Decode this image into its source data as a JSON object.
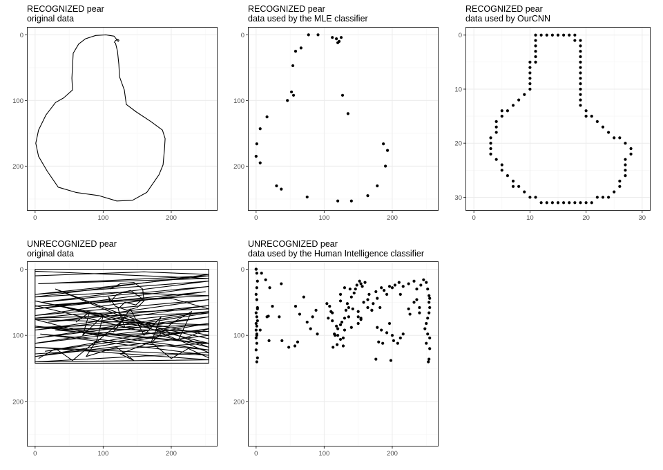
{
  "colors": {
    "panel_border": "#333333",
    "grid_major": "#ebebeb",
    "grid_minor": "#f5f5f5",
    "ink": "#000000",
    "tick_text": "#4d4d4d"
  },
  "chart_data": [
    {
      "id": "p1",
      "type": "line",
      "title": "RECOGNIZED pear",
      "subtitle": "original data",
      "xlim": [
        -12,
        268
      ],
      "ylim": [
        -12,
        268
      ],
      "y_reversed": true,
      "xticks": [
        0,
        100,
        200
      ],
      "yticks": [
        0,
        100,
        200
      ],
      "grid": true,
      "strokes": [
        {
          "x": [
            116,
            118,
            121,
            123,
            123,
            122,
            116,
            104,
            89,
            74,
            64,
            56,
            55,
            54,
            55,
            42,
            30,
            16,
            5,
            1,
            5,
            18,
            34,
            60,
            94,
            120,
            143,
            164,
            182,
            188,
            190,
            191,
            187,
            170,
            148,
            134,
            131,
            124,
            123,
            121,
            118
          ],
          "y": [
            12,
            9,
            7,
            8,
            9,
            10,
            2,
            0,
            1,
            6,
            14,
            28,
            48,
            66,
            84,
            96,
            103,
            122,
            145,
            165,
            185,
            208,
            232,
            240,
            245,
            253,
            252,
            240,
            213,
            198,
            175,
            158,
            145,
            132,
            117,
            106,
            84,
            64,
            45,
            25,
            12
          ]
        }
      ]
    },
    {
      "id": "p2",
      "type": "scatter",
      "title": "RECOGNIZED pear",
      "subtitle": "data used by the MLE classifier",
      "xlim": [
        -12,
        268
      ],
      "ylim": [
        -12,
        268
      ],
      "y_reversed": true,
      "xticks": [
        0,
        100,
        200
      ],
      "yticks": [
        0,
        100,
        200
      ],
      "grid": true,
      "x": [
        77,
        91,
        112,
        118,
        122,
        125,
        120,
        66,
        58,
        54,
        52,
        55,
        46,
        16,
        6,
        1,
        0,
        6,
        30,
        37,
        75,
        120,
        127,
        135,
        140,
        164,
        178,
        187,
        193,
        190
      ],
      "y": [
        0,
        0,
        4,
        6,
        10,
        4,
        12,
        20,
        25,
        47,
        87,
        92,
        100,
        125,
        143,
        166,
        185,
        195,
        230,
        235,
        247,
        253,
        92,
        120,
        253,
        245,
        230,
        166,
        176,
        200
      ]
    },
    {
      "id": "p3",
      "type": "scatter",
      "title": "RECOGNIZED pear",
      "subtitle": "data used by OurCNN",
      "xlim": [
        -1.5,
        31.5
      ],
      "ylim": [
        -1.5,
        32.5
      ],
      "y_reversed": true,
      "xticks": [
        0,
        10,
        20,
        30
      ],
      "yticks": [
        0,
        10,
        20,
        30
      ],
      "grid": true,
      "x": [
        11,
        12,
        13,
        14,
        15,
        16,
        17,
        18,
        11,
        11,
        11,
        11,
        11,
        10,
        10,
        10,
        10,
        10,
        10,
        9,
        8,
        7,
        6,
        5,
        5,
        4,
        4,
        4,
        3,
        3,
        3,
        3,
        4,
        5,
        5,
        6,
        7,
        7,
        8,
        9,
        10,
        11,
        12,
        13,
        14,
        15,
        16,
        17,
        18,
        19,
        20,
        21,
        22,
        23,
        24,
        25,
        26,
        26,
        27,
        27,
        27,
        27,
        28,
        28,
        27,
        26,
        25,
        24,
        23,
        22,
        21,
        20,
        20,
        19,
        19,
        19,
        19,
        19,
        19,
        19,
        19,
        19,
        19,
        19,
        19,
        19,
        18
      ],
      "y": [
        0,
        0,
        0,
        0,
        0,
        0,
        0,
        0,
        1,
        2,
        3,
        4,
        5,
        5,
        6,
        7,
        8,
        9,
        10,
        11,
        12,
        13,
        14,
        14,
        15,
        16,
        17,
        18,
        19,
        20,
        21,
        22,
        23,
        24,
        25,
        26,
        27,
        28,
        28,
        29,
        30,
        30,
        31,
        31,
        31,
        31,
        31,
        31,
        31,
        31,
        31,
        31,
        30,
        30,
        30,
        29,
        28,
        27,
        26,
        25,
        24,
        23,
        22,
        21,
        20,
        19,
        19,
        18,
        17,
        16,
        15,
        15,
        14,
        13,
        12,
        11,
        10,
        9,
        8,
        7,
        6,
        5,
        4,
        3,
        2,
        1,
        1
      ]
    },
    {
      "id": "p4",
      "type": "line",
      "title": "UNRECOGNIZED pear",
      "subtitle": "original data",
      "xlim": [
        -12,
        268
      ],
      "ylim": [
        -12,
        268
      ],
      "y_reversed": true,
      "xticks": [
        0,
        100,
        200
      ],
      "yticks": [
        0,
        100,
        200
      ],
      "grid": true,
      "strokes": [
        {
          "x": [
            0,
            255,
            255,
            0,
            0
          ],
          "y": [
            0,
            0,
            142,
            142,
            0
          ]
        },
        {
          "x": [
            0,
            255,
            5,
            255,
            0,
            255,
            10,
            255,
            0,
            250,
            0,
            255,
            20,
            255,
            0,
            255,
            3,
            255,
            0,
            255,
            15,
            255,
            0,
            255,
            0,
            255,
            40,
            255,
            0,
            255,
            8,
            255,
            0,
            255,
            0,
            255,
            30,
            255,
            0
          ],
          "y": [
            3,
            14,
            22,
            10,
            38,
            18,
            50,
            26,
            60,
            34,
            70,
            46,
            80,
            55,
            92,
            64,
            104,
            72,
            112,
            82,
            124,
            90,
            132,
            100,
            48,
            105,
            57,
            112,
            86,
            122,
            98,
            130,
            118,
            137,
            140,
            126,
            30,
            118,
            55
          ]
        },
        {
          "x": [
            0,
            160,
            255,
            180,
            0,
            120,
            255,
            100,
            0,
            200,
            255,
            60,
            0,
            255,
            150,
            0,
            255,
            90,
            0,
            255,
            30,
            255,
            0
          ],
          "y": [
            10,
            4,
            8,
            18,
            42,
            35,
            40,
            48,
            56,
            44,
            60,
            68,
            74,
            66,
            83,
            88,
            94,
            100,
            76,
            84,
            92,
            112,
            128
          ]
        },
        {
          "x": [
            110,
            125,
            145,
            158,
            160,
            150,
            135,
            118,
            108,
            110,
            120,
            140,
            158,
            148,
            132,
            122,
            126,
            132
          ],
          "y": [
            30,
            22,
            20,
            30,
            48,
            58,
            62,
            56,
            42,
            50,
            38,
            32,
            45,
            54,
            50,
            60,
            72,
            88
          ]
        },
        {
          "x": [
            60,
            80,
            70,
            100,
            90,
            130,
            115,
            140,
            160,
            185,
            170,
            200,
            230,
            210,
            255
          ],
          "y": [
            80,
            65,
            100,
            70,
            110,
            76,
            95,
            60,
            100,
            72,
            112,
            82,
            64,
            108,
            90
          ]
        },
        {
          "x": [
            5,
            30,
            55,
            90,
            75,
            120,
            145,
            125,
            170,
            200,
            225,
            255
          ],
          "y": [
            135,
            120,
            138,
            108,
            132,
            118,
            138,
            128,
            110,
            135,
            120,
            134
          ]
        }
      ]
    },
    {
      "id": "p5",
      "type": "scatter",
      "title": "UNRECOGNIZED pear",
      "subtitle": "data used by the Human Intelligence classifier",
      "xlim": [
        -12,
        268
      ],
      "ylim": [
        -12,
        268
      ],
      "y_reversed": true,
      "xticks": [
        0,
        100,
        200
      ],
      "yticks": [
        0,
        100,
        200
      ],
      "grid": true,
      "x": [
        0,
        1,
        2,
        1,
        0,
        1,
        2,
        0,
        1,
        2,
        0,
        1,
        0,
        1,
        0,
        2,
        1,
        0,
        1,
        2,
        0,
        1,
        8,
        14,
        20,
        37,
        18,
        16,
        24,
        6,
        38,
        19,
        34,
        58,
        64,
        61,
        57,
        48,
        75,
        70,
        88,
        83,
        80,
        90,
        108,
        112,
        120,
        116,
        124,
        119,
        128,
        128,
        130,
        134,
        124,
        124,
        138,
        140,
        144,
        148,
        152,
        154,
        156,
        160,
        146,
        142,
        132,
        136,
        150,
        120,
        126,
        113,
        115,
        118,
        104,
        106,
        110,
        112,
        124,
        130,
        136,
        150,
        150,
        140,
        130,
        158,
        164,
        166,
        170,
        172,
        176,
        178,
        182,
        184,
        188,
        192,
        196,
        200,
        204,
        210,
        216,
        224,
        232,
        236,
        242,
        246,
        250,
        252,
        254,
        255,
        254,
        255,
        254,
        252,
        250,
        248,
        252,
        255,
        250,
        255,
        254,
        253,
        240,
        240,
        232,
        236,
        224,
        226,
        212,
        216,
        200,
        202,
        208,
        212,
        196,
        192,
        186,
        198,
        184,
        178,
        180,
        176,
        170,
        164,
        154,
        154
      ],
      "y": [
        0,
        6,
        18,
        28,
        38,
        46,
        58,
        66,
        72,
        78,
        92,
        98,
        104,
        112,
        122,
        134,
        140,
        0,
        86,
        60,
        82,
        100,
        6,
        16,
        28,
        22,
        71,
        72,
        56,
        92,
        108,
        108,
        72,
        56,
        68,
        110,
        116,
        118,
        80,
        42,
        62,
        72,
        90,
        98,
        56,
        66,
        90,
        100,
        106,
        114,
        116,
        104,
        28,
        52,
        48,
        38,
        30,
        42,
        36,
        24,
        18,
        22,
        26,
        20,
        30,
        60,
        62,
        72,
        64,
        100,
        80,
        118,
        98,
        86,
        52,
        74,
        64,
        78,
        84,
        74,
        58,
        72,
        82,
        88,
        92,
        50,
        46,
        38,
        62,
        52,
        34,
        44,
        58,
        28,
        32,
        38,
        26,
        28,
        24,
        20,
        26,
        22,
        18,
        30,
        24,
        16,
        20,
        30,
        40,
        44,
        50,
        58,
        66,
        74,
        82,
        90,
        98,
        104,
        112,
        120,
        136,
        140,
        58,
        66,
        50,
        46,
        60,
        68,
        38,
        98,
        100,
        108,
        112,
        104,
        82,
        96,
        112,
        138,
        92,
        88,
        110,
        136,
        62,
        58,
        76,
        74
      ]
    }
  ]
}
